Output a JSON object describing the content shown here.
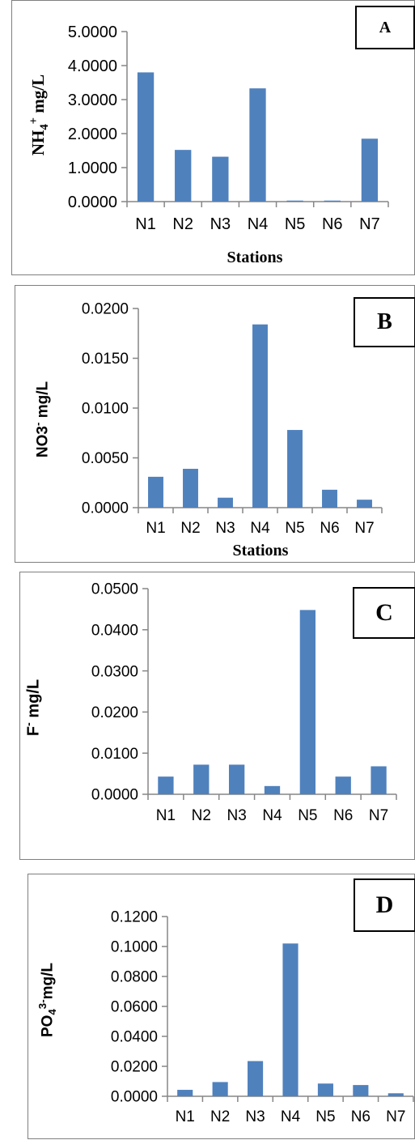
{
  "colors": {
    "bar": "#4f81bd",
    "axis": "#868686",
    "frame": "#7f7f7f"
  },
  "chart_data": [
    {
      "type": "bar",
      "panel_label": "A",
      "categories": [
        "N1",
        "N2",
        "N3",
        "N4",
        "N5",
        "N6",
        "N7"
      ],
      "values": [
        3.8,
        1.52,
        1.32,
        3.33,
        0.03,
        0.03,
        1.85
      ],
      "ylim": [
        0,
        5
      ],
      "yticks": [
        0,
        1,
        2,
        3,
        4,
        5
      ],
      "ytick_labels": [
        "0.0000",
        "1.0000",
        "2.0000",
        "3.0000",
        "4.0000",
        "5.0000"
      ],
      "ylabel_parts": [
        "NH",
        "4",
        "+",
        " mg/L"
      ],
      "xlabel": "Stations"
    },
    {
      "type": "bar",
      "panel_label": "B",
      "categories": [
        "N1",
        "N2",
        "N3",
        "N4",
        "N5",
        "N6",
        "N7"
      ],
      "values": [
        0.0031,
        0.0039,
        0.001,
        0.0184,
        0.0078,
        0.0018,
        0.0008
      ],
      "ylim": [
        0,
        0.02
      ],
      "yticks": [
        0,
        0.005,
        0.01,
        0.015,
        0.02
      ],
      "ytick_labels": [
        "0.0000",
        "0.0050",
        "0.0100",
        "0.0150",
        "0.0200"
      ],
      "ylabel_parts": [
        "NO3",
        "-",
        " mg/L"
      ],
      "xlabel": "Stations"
    },
    {
      "type": "bar",
      "panel_label": "C",
      "categories": [
        "N1",
        "N2",
        "N3",
        "N4",
        "N5",
        "N6",
        "N7"
      ],
      "values": [
        0.0043,
        0.0072,
        0.0072,
        0.002,
        0.0448,
        0.0043,
        0.0068
      ],
      "ylim": [
        0,
        0.05
      ],
      "yticks": [
        0,
        0.01,
        0.02,
        0.03,
        0.04,
        0.05
      ],
      "ytick_labels": [
        "0.0000",
        "0.0100",
        "0.0200",
        "0.0300",
        "0.0400",
        "0.0500"
      ],
      "ylabel_parts": [
        "F",
        "-",
        " mg/L"
      ],
      "xlabel": ""
    },
    {
      "type": "bar",
      "panel_label": "D",
      "categories": [
        "N1",
        "N2",
        "N3",
        "N4",
        "N5",
        "N6",
        "N7"
      ],
      "values": [
        0.0043,
        0.0095,
        0.0235,
        0.102,
        0.0085,
        0.0075,
        0.002
      ],
      "ylim": [
        0,
        0.12
      ],
      "yticks": [
        0,
        0.02,
        0.04,
        0.06,
        0.08,
        0.1,
        0.12
      ],
      "ytick_labels": [
        "0.0000",
        "0.0200",
        "0.0400",
        "0.0600",
        "0.0800",
        "0.1000",
        "0.1200"
      ],
      "ylabel_parts": [
        "PO",
        "4",
        "3-",
        "mg/L"
      ],
      "xlabel": ""
    }
  ]
}
